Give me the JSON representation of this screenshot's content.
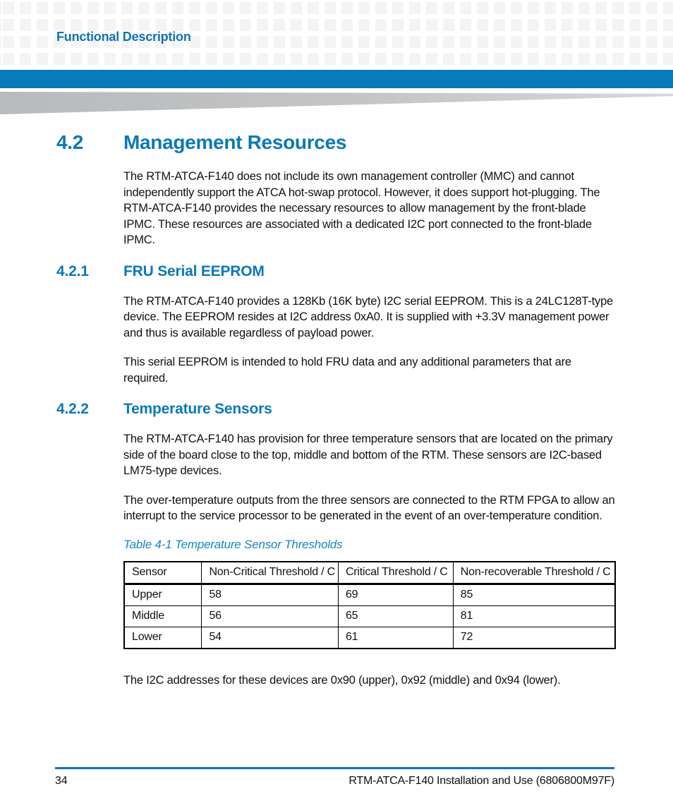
{
  "header": {
    "running_title": "Functional Description"
  },
  "section": {
    "number": "4.2",
    "title": "Management Resources",
    "intro": "The RTM-ATCA-F140 does not include its own management controller (MMC) and cannot independently support the ATCA hot-swap protocol. However, it does support hot-plugging. The RTM-ATCA-F140 provides the necessary resources to allow management by the front-blade IPMC. These resources are associated with a dedicated I2C port connected to the front-blade IPMC."
  },
  "subsection_eeprom": {
    "number": "4.2.1",
    "title": "FRU Serial EEPROM",
    "para1": "The RTM-ATCA-F140 provides a 128Kb (16K byte) I2C serial EEPROM. This is a 24LC128T-type device. The EEPROM resides at I2C address 0xA0. It is supplied with +3.3V management power and thus is available regardless of payload power.",
    "para2": "This serial EEPROM is intended to hold FRU data and any additional parameters that are required."
  },
  "subsection_sensors": {
    "number": "4.2.2",
    "title": "Temperature Sensors",
    "para1": "The RTM-ATCA-F140 has provision for three temperature sensors that are located on the primary side of the board close to the top, middle and bottom of the RTM. These sensors are I2C-based LM75-type devices.",
    "para2": "The over-temperature outputs from the three sensors are connected to the RTM FPGA to allow an interrupt to the service processor to be generated in the event of an over-temperature condition.",
    "closing": "The I2C addresses for these devices are 0x90 (upper), 0x92 (middle) and 0x94 (lower)."
  },
  "table": {
    "caption": "Table 4-1 Temperature Sensor Thresholds",
    "columns": [
      "Sensor",
      "Non-Critical Threshold / C",
      "Critical Threshold / C",
      "Non-recoverable Threshold / C"
    ],
    "rows": [
      [
        "Upper",
        "58",
        "69",
        "85"
      ],
      [
        "Middle",
        "56",
        "65",
        "81"
      ],
      [
        "Lower",
        "54",
        "61",
        "72"
      ]
    ]
  },
  "footer": {
    "page_number": "34",
    "doc_title": "RTM-ATCA-F140 Installation and Use (6806800M97F)"
  },
  "colors": {
    "accent_blue": "#0879B9",
    "caption_blue": "#1586C0",
    "wedge_gray": "#BDBFC1",
    "pattern_gray": "#F4F4F4"
  }
}
